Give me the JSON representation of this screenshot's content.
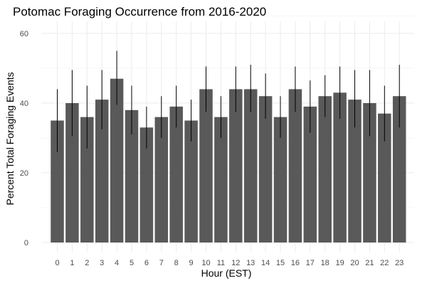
{
  "chart_data": {
    "type": "bar",
    "title": "Potomac Foraging Occurrence from 2016-2020",
    "xlabel": "Hour (EST)",
    "ylabel": "Percent Total Foraging Events",
    "ylim": [
      0,
      60
    ],
    "yticks": [
      0,
      20,
      40,
      60
    ],
    "grid": true,
    "categories": [
      "0",
      "1",
      "2",
      "3",
      "4",
      "5",
      "6",
      "7",
      "8",
      "9",
      "10",
      "11",
      "12",
      "13",
      "14",
      "15",
      "16",
      "17",
      "18",
      "19",
      "20",
      "21",
      "22",
      "23"
    ],
    "values": [
      35,
      40,
      36,
      41,
      47,
      38,
      33,
      36,
      39,
      35,
      44,
      36,
      44,
      44,
      42,
      36,
      44,
      39,
      42,
      43,
      41,
      40,
      37,
      42
    ],
    "error_low": [
      26,
      30.5,
      27,
      32.5,
      39.5,
      31,
      27,
      30,
      33,
      29,
      37.5,
      30,
      37.5,
      37.5,
      35.5,
      30,
      37.5,
      31.5,
      36,
      35.5,
      33,
      30.5,
      29,
      33
    ],
    "error_high": [
      44,
      49.5,
      45,
      49.5,
      55,
      45,
      39,
      42,
      45,
      41,
      50.5,
      42,
      50.5,
      51,
      48.5,
      42,
      50.5,
      46.5,
      48,
      50.5,
      49.5,
      49.5,
      45,
      51
    ],
    "colors": {
      "bar": "#595959",
      "grid": "#ebebeb",
      "errorbar": "#000000",
      "background": "#ffffff"
    }
  }
}
